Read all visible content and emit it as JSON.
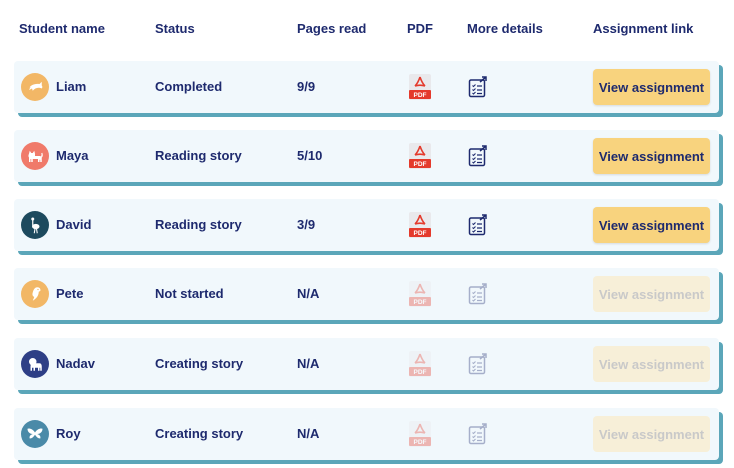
{
  "columns": {
    "student_name": "Student name",
    "status": "Status",
    "pages_read": "Pages read",
    "pdf": "PDF",
    "more_details": "More details",
    "assignment_link": "Assignment link"
  },
  "pdf_label": "PDF",
  "students": [
    {
      "name": "Liam",
      "status": "Completed",
      "pages": "9/9",
      "button": "View assignment",
      "avatar_icon": "dolphin-icon",
      "avatar_color": "#f2b766",
      "enabled": true
    },
    {
      "name": "Maya",
      "status": "Reading story",
      "pages": "5/10",
      "button": "View assignment",
      "avatar_icon": "cat-icon",
      "avatar_color": "#f07a6a",
      "enabled": true
    },
    {
      "name": "David",
      "status": "Reading story",
      "pages": "3/9",
      "button": "View assignment",
      "avatar_icon": "ostrich-icon",
      "avatar_color": "#1d4a5e",
      "enabled": true
    },
    {
      "name": "Pete",
      "status": "Not started",
      "pages": "N/A",
      "button": "View assignment",
      "avatar_icon": "parrot-icon",
      "avatar_color": "#f2b766",
      "enabled": false
    },
    {
      "name": "Nadav",
      "status": "Creating story",
      "pages": "N/A",
      "button": "View assignment",
      "avatar_icon": "lion-icon",
      "avatar_color": "#2e3f86",
      "enabled": false
    },
    {
      "name": "Roy",
      "status": "Creating story",
      "pages": "N/A",
      "button": "View assignment",
      "avatar_icon": "butterfly-icon",
      "avatar_color": "#4a8aa8",
      "enabled": false
    }
  ]
}
